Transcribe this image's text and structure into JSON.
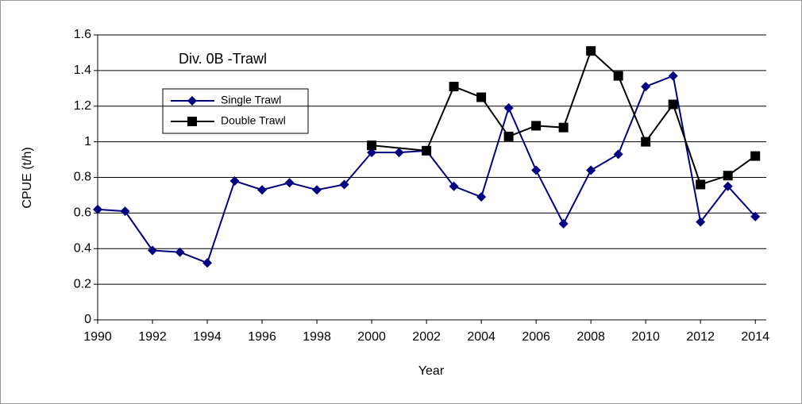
{
  "chart_data": {
    "type": "line",
    "title": "Div. 0B -Trawl",
    "x_label": "Year",
    "y_label": "CPUE (t/h)",
    "xlim": [
      1990,
      2014.4
    ],
    "xticks": [
      1990,
      1992,
      1994,
      1996,
      1998,
      2000,
      2002,
      2004,
      2006,
      2008,
      2010,
      2012,
      2014
    ],
    "ylim": [
      0,
      1.6
    ],
    "yticks": [
      0,
      {
        "value": 0.2,
        "label": "0.2"
      },
      {
        "value": 0.4,
        "label": "0.4"
      },
      {
        "value": 0.6,
        "label": "0.6"
      },
      {
        "value": 0.8,
        "label": "0.8"
      },
      1,
      {
        "value": 1.2,
        "label": "1.2"
      },
      {
        "value": 1.4,
        "label": "1.4"
      },
      {
        "value": 1.6,
        "label": "1.6"
      }
    ],
    "grid": true,
    "series": [
      {
        "name": "Single Trawl",
        "color": "#000080",
        "marker": "diamond",
        "x": [
          1990,
          1991,
          1992,
          1993,
          1994,
          1995,
          1996,
          1997,
          1998,
          1999,
          2000,
          2001,
          2002,
          2003,
          2004,
          2005,
          2006,
          2007,
          2008,
          2009,
          2010,
          2011,
          2012,
          2013,
          2014
        ],
        "values": [
          0.62,
          0.61,
          0.39,
          0.38,
          0.32,
          0.78,
          0.73,
          0.77,
          0.73,
          0.76,
          0.94,
          0.94,
          0.95,
          0.75,
          0.69,
          1.19,
          0.84,
          0.54,
          0.84,
          0.93,
          1.31,
          1.37,
          0.55,
          0.75,
          0.58
        ]
      },
      {
        "name": "Double Trawl",
        "color": "#000000",
        "marker": "square",
        "x": [
          2000,
          2002,
          2003,
          2004,
          2005,
          2006,
          2007,
          2008,
          2009,
          2010,
          2011,
          2012,
          2013,
          2014
        ],
        "values": [
          0.98,
          0.95,
          1.31,
          1.25,
          1.03,
          1.09,
          1.08,
          1.51,
          1.37,
          1.0,
          1.21,
          0.76,
          0.81,
          0.92
        ]
      }
    ]
  }
}
